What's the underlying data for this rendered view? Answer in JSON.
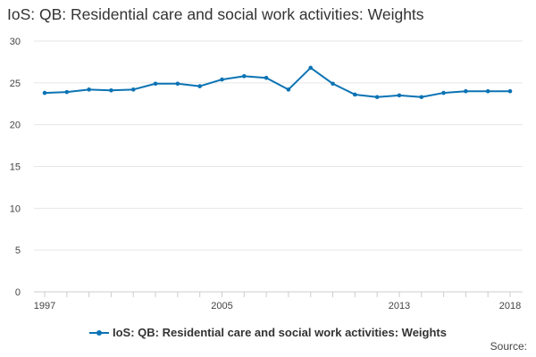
{
  "title": "IoS: QB: Residential care and social work activities: Weights",
  "source_label": "Source:",
  "colors": {
    "series": "#0b73b4",
    "grid": "#e6e6e6",
    "axis": "#cccccc"
  },
  "chart_data": {
    "type": "line",
    "title": "IoS: QB: Residential care and social work activities: Weights",
    "xlabel": "",
    "ylabel": "",
    "x": [
      1997,
      1998,
      1999,
      2000,
      2001,
      2002,
      2003,
      2004,
      2005,
      2006,
      2007,
      2008,
      2009,
      2010,
      2011,
      2012,
      2013,
      2014,
      2015,
      2016,
      2017,
      2018
    ],
    "series": [
      {
        "name": "IoS: QB: Residential care and social work activities: Weights",
        "values": [
          23.8,
          23.9,
          24.2,
          24.1,
          24.2,
          24.9,
          24.9,
          24.6,
          25.4,
          25.8,
          25.6,
          24.2,
          26.8,
          24.9,
          23.6,
          23.3,
          23.5,
          23.3,
          23.8,
          24.0,
          24.0,
          24.0
        ]
      }
    ],
    "ylim": [
      0,
      30
    ],
    "yticks": [
      0,
      5,
      10,
      15,
      20,
      25,
      30
    ],
    "xtick_labels": [
      "1997",
      "2005",
      "2013",
      "2018"
    ],
    "grid": true,
    "legend_position": "bottom"
  }
}
